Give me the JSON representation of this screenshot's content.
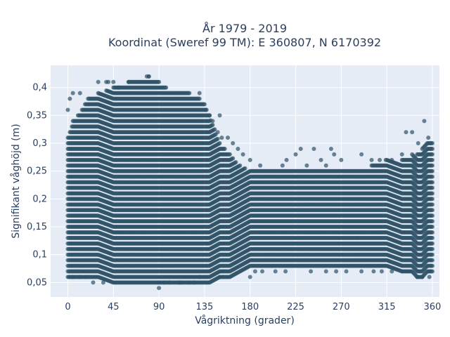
{
  "chart_data": {
    "type": "scatter",
    "title_line1": "År 1979 - 2019",
    "title_line2": "Koordinat (Sweref 99 TM): E 360807, N 6170392",
    "xlabel": "Vågriktning (grader)",
    "ylabel": "Signifikant våghöjd (m)",
    "xlim": [
      -17,
      367
    ],
    "ylim": [
      0.024,
      0.44
    ],
    "x_ticks": [
      0,
      45,
      90,
      135,
      180,
      225,
      270,
      315,
      360
    ],
    "x_tick_labels": [
      "0",
      "45",
      "90",
      "135",
      "180",
      "225",
      "270",
      "315",
      "360"
    ],
    "y_ticks": [
      0.05,
      0.1,
      0.15,
      0.2,
      0.25,
      0.3,
      0.35,
      0.4
    ],
    "y_tick_labels": [
      "0,05",
      "0,1",
      "0,15",
      "0,2",
      "0,25",
      "0,3",
      "0,35",
      "0,4"
    ],
    "grid": true,
    "plot_bgcolor": "#e5ecf6",
    "marker_color": "#2f5368",
    "marker_opacity": 0.7,
    "band": {
      "direction": [
        0,
        5,
        10,
        20,
        30,
        45,
        60,
        75,
        80,
        90,
        105,
        120,
        130,
        135,
        140,
        150,
        160,
        170,
        180,
        190,
        200,
        215,
        225,
        240,
        255,
        270,
        285,
        300,
        315,
        330,
        340,
        345,
        350,
        355,
        360
      ],
      "low": [
        0.06,
        0.06,
        0.06,
        0.06,
        0.06,
        0.05,
        0.05,
        0.05,
        0.05,
        0.05,
        0.05,
        0.05,
        0.05,
        0.05,
        0.05,
        0.06,
        0.06,
        0.07,
        0.08,
        0.08,
        0.08,
        0.08,
        0.08,
        0.08,
        0.08,
        0.08,
        0.08,
        0.08,
        0.08,
        0.07,
        0.07,
        0.06,
        0.06,
        0.07,
        0.07
      ],
      "high": [
        0.31,
        0.34,
        0.35,
        0.38,
        0.39,
        0.4,
        0.41,
        0.41,
        0.42,
        0.41,
        0.39,
        0.39,
        0.38,
        0.37,
        0.35,
        0.3,
        0.28,
        0.26,
        0.25,
        0.26,
        0.25,
        0.25,
        0.25,
        0.25,
        0.25,
        0.25,
        0.25,
        0.26,
        0.27,
        0.27,
        0.28,
        0.28,
        0.29,
        0.3,
        0.3
      ]
    },
    "outliers": [
      {
        "x": 0,
        "y": 0.36
      },
      {
        "x": 2,
        "y": 0.38
      },
      {
        "x": 5,
        "y": 0.39
      },
      {
        "x": 12,
        "y": 0.39
      },
      {
        "x": 30,
        "y": 0.41
      },
      {
        "x": 38,
        "y": 0.41
      },
      {
        "x": 40,
        "y": 0.41
      },
      {
        "x": 45,
        "y": 0.41
      },
      {
        "x": 50,
        "y": 0.4
      },
      {
        "x": 60,
        "y": 0.41
      },
      {
        "x": 78,
        "y": 0.42
      },
      {
        "x": 80,
        "y": 0.42
      },
      {
        "x": 130,
        "y": 0.39
      },
      {
        "x": 136,
        "y": 0.36
      },
      {
        "x": 140,
        "y": 0.35
      },
      {
        "x": 143,
        "y": 0.34
      },
      {
        "x": 150,
        "y": 0.35
      },
      {
        "x": 148,
        "y": 0.32
      },
      {
        "x": 152,
        "y": 0.31
      },
      {
        "x": 158,
        "y": 0.31
      },
      {
        "x": 163,
        "y": 0.3
      },
      {
        "x": 168,
        "y": 0.29
      },
      {
        "x": 173,
        "y": 0.28
      },
      {
        "x": 180,
        "y": 0.27
      },
      {
        "x": 212,
        "y": 0.26
      },
      {
        "x": 216,
        "y": 0.27
      },
      {
        "x": 225,
        "y": 0.28
      },
      {
        "x": 230,
        "y": 0.29
      },
      {
        "x": 236,
        "y": 0.26
      },
      {
        "x": 243,
        "y": 0.29
      },
      {
        "x": 250,
        "y": 0.27
      },
      {
        "x": 255,
        "y": 0.26
      },
      {
        "x": 260,
        "y": 0.29
      },
      {
        "x": 263,
        "y": 0.28
      },
      {
        "x": 270,
        "y": 0.27
      },
      {
        "x": 290,
        "y": 0.28
      },
      {
        "x": 300,
        "y": 0.27
      },
      {
        "x": 308,
        "y": 0.27
      },
      {
        "x": 314,
        "y": 0.27
      },
      {
        "x": 320,
        "y": 0.27
      },
      {
        "x": 330,
        "y": 0.28
      },
      {
        "x": 334,
        "y": 0.32
      },
      {
        "x": 340,
        "y": 0.32
      },
      {
        "x": 346,
        "y": 0.3
      },
      {
        "x": 352,
        "y": 0.34
      },
      {
        "x": 356,
        "y": 0.31
      },
      {
        "x": 5,
        "y": 0.06
      },
      {
        "x": 12,
        "y": 0.06
      },
      {
        "x": 18,
        "y": 0.06
      },
      {
        "x": 25,
        "y": 0.05
      },
      {
        "x": 35,
        "y": 0.05
      },
      {
        "x": 90,
        "y": 0.05
      },
      {
        "x": 95,
        "y": 0.05
      },
      {
        "x": 100,
        "y": 0.05
      },
      {
        "x": 110,
        "y": 0.05
      },
      {
        "x": 112,
        "y": 0.05
      },
      {
        "x": 120,
        "y": 0.05
      },
      {
        "x": 125,
        "y": 0.05
      },
      {
        "x": 130,
        "y": 0.06
      },
      {
        "x": 135,
        "y": 0.06
      },
      {
        "x": 150,
        "y": 0.06
      },
      {
        "x": 180,
        "y": 0.06
      },
      {
        "x": 185,
        "y": 0.07
      },
      {
        "x": 192,
        "y": 0.07
      },
      {
        "x": 205,
        "y": 0.07
      },
      {
        "x": 215,
        "y": 0.07
      },
      {
        "x": 240,
        "y": 0.07
      },
      {
        "x": 255,
        "y": 0.07
      },
      {
        "x": 265,
        "y": 0.07
      },
      {
        "x": 275,
        "y": 0.07
      },
      {
        "x": 290,
        "y": 0.07
      },
      {
        "x": 302,
        "y": 0.07
      },
      {
        "x": 310,
        "y": 0.07
      },
      {
        "x": 320,
        "y": 0.07
      },
      {
        "x": 330,
        "y": 0.07
      },
      {
        "x": 345,
        "y": 0.06
      },
      {
        "x": 350,
        "y": 0.06
      },
      {
        "x": 357,
        "y": 0.06
      },
      {
        "x": 90,
        "y": 0.04
      }
    ]
  }
}
